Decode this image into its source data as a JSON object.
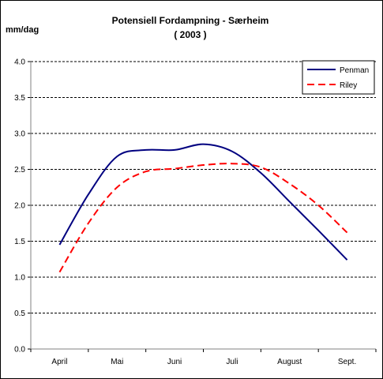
{
  "chart_data": {
    "type": "line",
    "title": "Potensiell Fordampning - Særheim",
    "subtitle": "( 2003 )",
    "ylabel": "mm/dag",
    "xlabel": "",
    "categories": [
      "April",
      "Mai",
      "Juni",
      "Juli",
      "August",
      "Sept."
    ],
    "yticks": [
      "0.0",
      "0.5",
      "1.0",
      "1.5",
      "2.0",
      "2.5",
      "3.0",
      "3.5",
      "4.0"
    ],
    "ylim": [
      0,
      4
    ],
    "grid": true,
    "legend_position": "top-right",
    "series": [
      {
        "name": "Penman",
        "color": "#000080",
        "dash": "solid",
        "x": [
          0,
          0.5,
          1,
          1.5,
          2,
          2.5,
          3,
          3.5,
          4,
          4.5,
          5
        ],
        "values": [
          1.45,
          2.15,
          2.68,
          2.77,
          2.77,
          2.85,
          2.75,
          2.45,
          2.05,
          1.65,
          1.24
        ]
      },
      {
        "name": "Riley",
        "color": "#ff0000",
        "dash": "dashed",
        "x": [
          0,
          0.5,
          1,
          1.5,
          2,
          2.5,
          3,
          3.5,
          4,
          4.5,
          5
        ],
        "values": [
          1.07,
          1.75,
          2.25,
          2.47,
          2.51,
          2.56,
          2.58,
          2.53,
          2.3,
          2.0,
          1.62
        ]
      }
    ]
  }
}
